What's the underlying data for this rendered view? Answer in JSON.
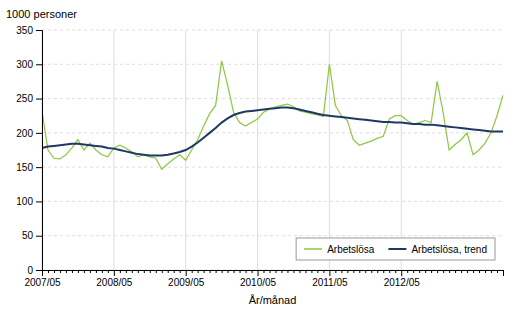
{
  "chart_data": {
    "type": "line",
    "ylabel": "1000 personer",
    "xlabel": "År/månad",
    "categories": [
      "2007/05",
      null,
      null,
      null,
      null,
      null,
      null,
      null,
      null,
      null,
      null,
      null,
      "2008/05",
      null,
      null,
      null,
      null,
      null,
      null,
      null,
      null,
      null,
      null,
      null,
      "2009/05",
      null,
      null,
      null,
      null,
      null,
      null,
      null,
      null,
      null,
      null,
      null,
      "2010/05",
      null,
      null,
      null,
      null,
      null,
      null,
      null,
      null,
      null,
      null,
      null,
      "2011/05",
      null,
      null,
      null,
      null,
      null,
      null,
      null,
      null,
      null,
      null,
      null,
      "2012/05",
      null,
      null,
      null,
      null,
      null,
      null,
      null,
      null,
      null,
      null,
      null,
      null,
      null,
      null,
      null,
      null,
      null
    ],
    "series": [
      {
        "name": "Arbetslösa",
        "color": "#8dc63f",
        "values": [
          232,
          175,
          163,
          162,
          168,
          178,
          190,
          175,
          185,
          175,
          168,
          165,
          178,
          182,
          178,
          172,
          165,
          168,
          165,
          163,
          147,
          155,
          162,
          168,
          160,
          175,
          190,
          210,
          228,
          240,
          305,
          270,
          230,
          215,
          210,
          215,
          220,
          230,
          235,
          238,
          240,
          242,
          238,
          232,
          230,
          228,
          226,
          224,
          300,
          240,
          225,
          218,
          190,
          182,
          185,
          188,
          192,
          195,
          220,
          225,
          225,
          218,
          212,
          215,
          218,
          215,
          275,
          230,
          175,
          183,
          190,
          200,
          168,
          175,
          185,
          200,
          225,
          255
        ]
      },
      {
        "name": "Arbetslösa, trend",
        "color": "#1f3864",
        "values": [
          178,
          180,
          181,
          182,
          183,
          184,
          184,
          183,
          182,
          181,
          180,
          178,
          177,
          175,
          173,
          171,
          169,
          168,
          167,
          167,
          167,
          168,
          170,
          172,
          175,
          180,
          186,
          193,
          200,
          207,
          215,
          221,
          226,
          229,
          231,
          232,
          233,
          234,
          235,
          236,
          237,
          237,
          236,
          234,
          232,
          230,
          228,
          226,
          225,
          224,
          223,
          222,
          221,
          220,
          219,
          218,
          217,
          216,
          216,
          215,
          215,
          214,
          213,
          213,
          212,
          212,
          211,
          210,
          209,
          208,
          207,
          206,
          205,
          204,
          203,
          202,
          202,
          202
        ]
      }
    ],
    "ylim": [
      0,
      350
    ],
    "yticks": [
      0,
      50,
      100,
      150,
      200,
      250,
      300,
      350
    ],
    "grid": true,
    "legend": "lower right"
  }
}
